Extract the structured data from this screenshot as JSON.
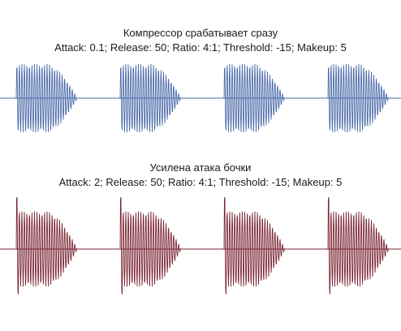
{
  "panels": [
    {
      "title": "Компрессор срабатывает сразу",
      "params": "Attack: 0.1; Release: 50; Ratio: 4:1; Threshold: -15; Makeup: 5",
      "color": "#4a6aa8"
    },
    {
      "title": "Усилена атака бочки",
      "params": "Attack: 2; Release: 50; Ratio: 4:1; Threshold: -15; Makeup: 5",
      "color": "#7a2535"
    }
  ]
}
